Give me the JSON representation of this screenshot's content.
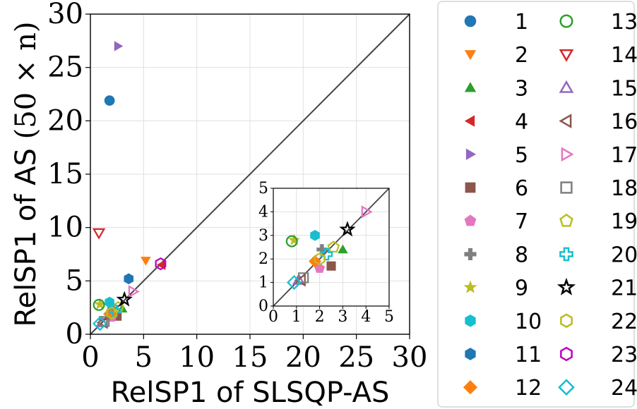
{
  "chart_data": [
    {
      "type": "scatter",
      "title": "",
      "xlabel": "RelSP1 of SLSQP-AS",
      "ylabel_text": "RelSP1 of AS",
      "ylabel_math": "(50 × n)",
      "xlim": [
        0,
        30
      ],
      "ylim": [
        0,
        30
      ],
      "xticks": [
        "0",
        "5",
        "10",
        "15",
        "20",
        "25",
        "30"
      ],
      "yticks": [
        "0",
        "5",
        "10",
        "15",
        "20",
        "25",
        "30"
      ],
      "grid": true,
      "diagonal_line": true,
      "legend_placement": "right, outside plot, two columns",
      "series": [
        {
          "name": "1",
          "marker": "circle",
          "filled": true,
          "color": "#1f77b4",
          "x": 1.8,
          "y": 21.9
        },
        {
          "name": "2",
          "marker": "triangle-down",
          "filled": true,
          "color": "#ff7f0e",
          "x": 5.2,
          "y": 6.9
        },
        {
          "name": "3",
          "marker": "triangle-up",
          "filled": true,
          "color": "#2ca02c",
          "x": 3.0,
          "y": 2.4
        },
        {
          "name": "4",
          "marker": "triangle-left",
          "filled": true,
          "color": "#d62728",
          "x": 6.7,
          "y": 6.5
        },
        {
          "name": "5",
          "marker": "triangle-right",
          "filled": true,
          "color": "#9467bd",
          "x": 2.6,
          "y": 27.0
        },
        {
          "name": "6",
          "marker": "square",
          "filled": true,
          "color": "#8c564b",
          "x": 2.5,
          "y": 1.7
        },
        {
          "name": "7",
          "marker": "pentagon",
          "filled": true,
          "color": "#e377c2",
          "x": 2.0,
          "y": 1.6
        },
        {
          "name": "8",
          "marker": "plus",
          "filled": true,
          "color": "#7f7f7f",
          "x": 2.1,
          "y": 2.4
        },
        {
          "name": "9",
          "marker": "star",
          "filled": true,
          "color": "#bcbd22",
          "x": 0.9,
          "y": 2.8
        },
        {
          "name": "10",
          "marker": "hexagon",
          "filled": true,
          "color": "#17becf",
          "x": 1.8,
          "y": 3.0
        },
        {
          "name": "11",
          "marker": "hexagon",
          "filled": true,
          "color": "#1f77b4",
          "x": 3.6,
          "y": 5.2
        },
        {
          "name": "12",
          "marker": "diamond",
          "filled": true,
          "color": "#ff7f0e",
          "x": 1.8,
          "y": 1.9
        },
        {
          "name": "13",
          "marker": "circle",
          "filled": false,
          "color": "#2ca02c",
          "x": 0.8,
          "y": 2.75
        },
        {
          "name": "14",
          "marker": "triangle-down",
          "filled": false,
          "color": "#d62728",
          "x": 0.8,
          "y": 9.5
        },
        {
          "name": "15",
          "marker": "triangle-up",
          "filled": false,
          "color": "#9467bd",
          "x": 1.1,
          "y": 1.1
        },
        {
          "name": "16",
          "marker": "triangle-left",
          "filled": false,
          "color": "#8c564b",
          "x": 1.2,
          "y": 1.1
        },
        {
          "name": "17",
          "marker": "triangle-right",
          "filled": false,
          "color": "#e377c2",
          "x": 4.0,
          "y": 4.0
        },
        {
          "name": "18",
          "marker": "square",
          "filled": false,
          "color": "#7f7f7f",
          "x": 1.3,
          "y": 1.2
        },
        {
          "name": "19",
          "marker": "pentagon",
          "filled": false,
          "color": "#bcbd22",
          "x": 2.6,
          "y": 2.5
        },
        {
          "name": "20",
          "marker": "plus",
          "filled": false,
          "color": "#17becf",
          "x": 2.3,
          "y": 2.2
        },
        {
          "name": "21",
          "marker": "star",
          "filled": false,
          "color": "#000000",
          "x": 3.2,
          "y": 3.25
        },
        {
          "name": "22",
          "marker": "hexagon",
          "filled": false,
          "color": "#bcbd22",
          "x": 2.0,
          "y": 2.0
        },
        {
          "name": "23",
          "marker": "hexagon",
          "filled": false,
          "color": "#bf00bf",
          "x": 6.6,
          "y": 6.6
        },
        {
          "name": "24",
          "marker": "diamond",
          "filled": false,
          "color": "#17becf",
          "x": 0.9,
          "y": 1.0
        }
      ]
    },
    {
      "type": "scatter",
      "title": "",
      "xlabel": "",
      "ylabel": "",
      "xlim": [
        0,
        5
      ],
      "ylim": [
        0,
        5
      ],
      "xticks": [
        "0",
        "1",
        "2",
        "3",
        "4",
        "5"
      ],
      "yticks": [
        "0",
        "1",
        "2",
        "3",
        "4",
        "5"
      ],
      "grid": true,
      "diagonal_line": true,
      "placement": "inset, lower-right of main axes",
      "series_ref": "same 24 series as main chart, zoomed to [0,5]"
    }
  ]
}
